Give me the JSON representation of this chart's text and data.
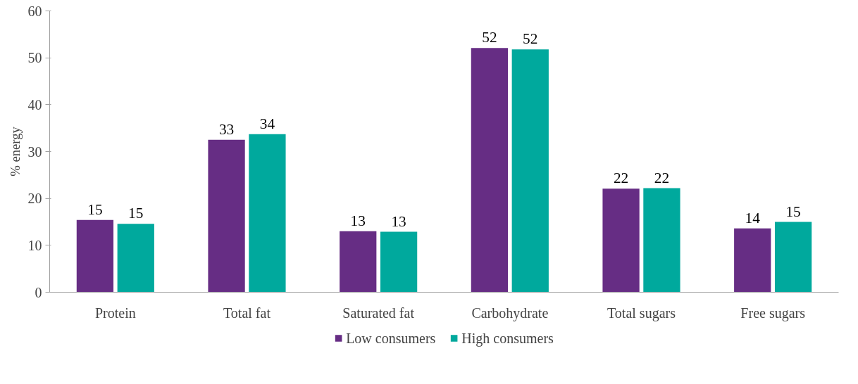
{
  "chart_data": {
    "type": "bar",
    "ylabel": "% energy",
    "categories": [
      "Protein",
      "Total fat",
      "Saturated fat",
      "Carbohydrate",
      "Total sugars",
      "Free sugars"
    ],
    "series": [
      {
        "name": "Low consumers",
        "color": "#662d84",
        "values": [
          15.4,
          32.5,
          13.0,
          52.1,
          22.1,
          13.6
        ],
        "value_labels": [
          "15",
          "33",
          "13",
          "52",
          "22",
          "14"
        ]
      },
      {
        "name": "High consumers",
        "color": "#00a99d",
        "values": [
          14.6,
          33.7,
          12.9,
          51.8,
          22.2,
          15.0
        ],
        "value_labels": [
          "15",
          "34",
          "13",
          "52",
          "22",
          "15"
        ]
      }
    ],
    "ylim": [
      0,
      60
    ],
    "yticks": [
      0,
      10,
      20,
      30,
      40,
      50,
      60
    ],
    "grid": false,
    "legend": "bottom"
  }
}
